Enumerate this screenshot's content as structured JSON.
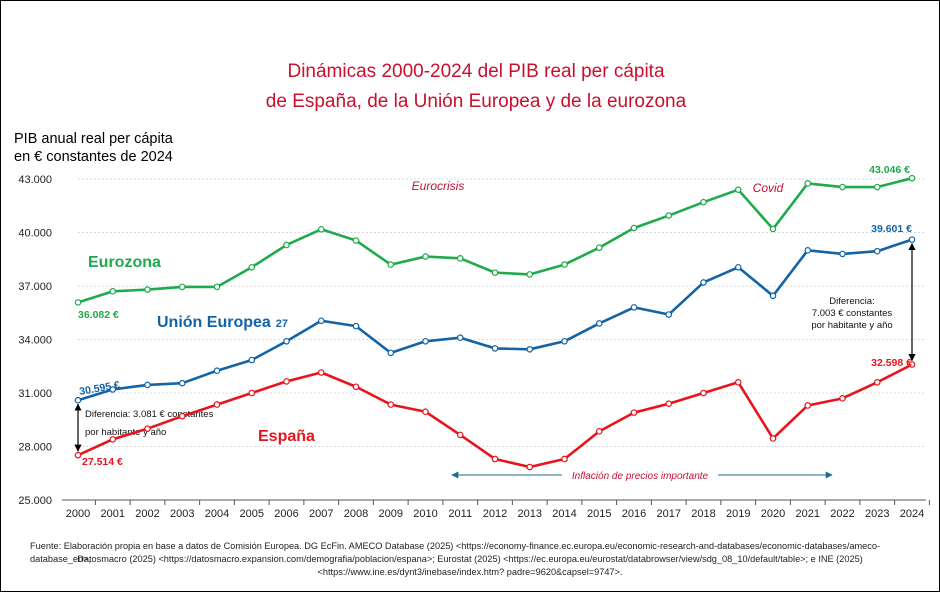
{
  "chart_data": {
    "type": "line",
    "title": [
      "Dinámicas 2000-2024 del PIB real per cápita",
      "de España, de la Unión Europea y de la eurozona"
    ],
    "ylabel": [
      "PIB anual real per cápita",
      "en € constantes de 2024"
    ],
    "ylim": [
      25000,
      43000
    ],
    "yticks": [
      25000,
      28000,
      31000,
      34000,
      37000,
      40000,
      43000
    ],
    "ytick_labels": [
      "25.000",
      "28.000",
      "31.000",
      "34.000",
      "37.000",
      "40.000",
      "43.000"
    ],
    "x": [
      "2000",
      "2001",
      "2002",
      "2003",
      "2004",
      "2005",
      "2006",
      "2007",
      "2008",
      "2009",
      "2010",
      "2011",
      "2012",
      "2013",
      "2014",
      "2015",
      "2016",
      "2017",
      "2018",
      "2019",
      "2020",
      "2021",
      "2022",
      "2023",
      "2024"
    ],
    "series": [
      {
        "name": "Eurozona",
        "color": "#1faa4b",
        "values": [
          36082,
          36700,
          36800,
          36950,
          36950,
          38050,
          39300,
          40180,
          39550,
          38200,
          38650,
          38550,
          37750,
          37650,
          38200,
          39150,
          40250,
          40950,
          41700,
          42400,
          40200,
          42750,
          42550,
          42550,
          43046
        ]
      },
      {
        "name": "Unión Europea 27",
        "color": "#1364a6",
        "values": [
          30595,
          31200,
          31450,
          31550,
          32250,
          32850,
          33900,
          35050,
          34750,
          33250,
          33900,
          34100,
          33500,
          33450,
          33900,
          34900,
          35800,
          35400,
          37200,
          38050,
          36450,
          39000,
          38800,
          38950,
          39601
        ]
      },
      {
        "name": "España",
        "color": "#e8141c",
        "values": [
          27514,
          28400,
          29000,
          29700,
          30350,
          31000,
          31650,
          32150,
          31350,
          30350,
          29950,
          28650,
          27300,
          26850,
          27300,
          28850,
          29900,
          30400,
          31000,
          31600,
          28450,
          30300,
          30700,
          31600,
          32598
        ]
      }
    ],
    "series_labels": {
      "eurozona": "Eurozona",
      "ue_main": "Unión Europea",
      "ue_sub": "27",
      "espana": "España"
    },
    "value_labels": {
      "eu_2000": "36.082 €",
      "eu_2024": "43.046 €",
      "ue_2000": "30.595 €",
      "ue_2024": "39.601 €",
      "es_2000": "27.514 €",
      "es_2024": "32.598 €"
    },
    "annotations": {
      "eurocrisis": "Eurocrisis",
      "covid": "Covid",
      "inflacion": "Inflación de precios importante",
      "diff2000_line1": "Diferencia: 3.081 € constantes",
      "diff2000_line2": "por habitante y año",
      "diff2024_line1": "Diferencia:",
      "diff2024_line2": "7.003 € constantes",
      "diff2024_line3": "por habitante y año"
    }
  },
  "source": {
    "line1": "Fuente: Elaboración propia en base a datos de Comisión Europea. DG EcFin. AMECO Database (2025) <https://economy-finance.ec.europa.eu/economic-research-and-databases/economic-databases/ameco-database_en>;",
    "line2": "Datosmacro (2025) <https://datosmacro.expansion.com/demografia/poblacion/espana>; Eurostat (2025) <https://ec.europa.eu/eurostat/databrowser/view/sdg_08_10/default/table>; e INE (2025)",
    "line3": "<https://www.ine.es/dynt3/inebase/index.htm? padre=9620&capsel=9747>."
  }
}
